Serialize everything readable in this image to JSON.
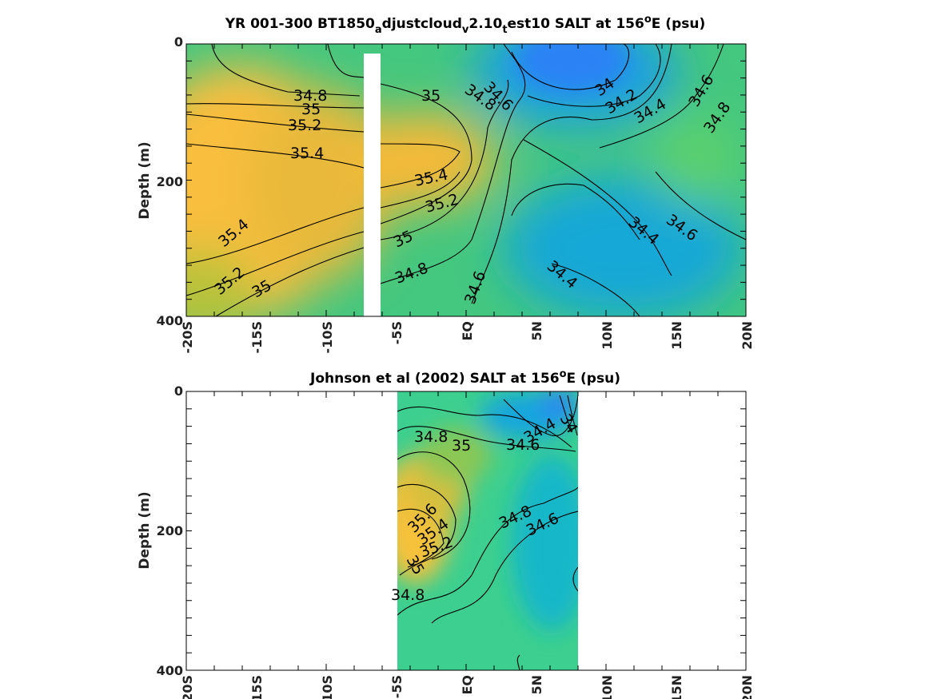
{
  "chart_data": [
    {
      "type": "heatmap",
      "title_parts": [
        "YR 001-300 BT1850",
        "a",
        "djustcloud",
        "v",
        "2.10",
        "t",
        "est10 SALT at 156",
        "o",
        "E (psu)"
      ],
      "ylabel": "Depth (m)",
      "xlim": [
        -20,
        20
      ],
      "ylim": [
        0,
        400
      ],
      "x_ticks": [
        "-20S",
        "-15S",
        "-10S",
        "-5S",
        "EQ",
        "5N",
        "10N",
        "15N",
        "20N"
      ],
      "y_ticks": [
        "0",
        "200",
        "400"
      ],
      "colors": {
        "high": "#f9be3d",
        "mid": "#3ccf8f",
        "low": "#2b82f5"
      },
      "masked_strip_lon": [
        -7.2,
        -6
      ],
      "contour_labels": [
        "34.8",
        "35",
        "35.2",
        "35.4",
        "35",
        "34.8",
        "35.4",
        "35.2",
        "34.6",
        "34",
        "34.2",
        "34.4",
        "34.6",
        "34.8",
        "35.4",
        "35.2",
        "35",
        "35",
        "34.8",
        "34.6",
        "34.4",
        "34.4",
        "34.6"
      ]
    },
    {
      "type": "heatmap",
      "title_parts": [
        "Johnson et al (2002) SALT at 156",
        "o",
        "E (psu)"
      ],
      "ylabel": "Depth (m)",
      "xlim": [
        -20,
        20
      ],
      "ylim": [
        0,
        400
      ],
      "x_ticks": [
        "20S",
        "15S",
        "10S",
        "-5S",
        "EQ",
        "5N",
        "10N",
        "15N",
        "20N"
      ],
      "y_ticks": [
        "0",
        "200",
        "400"
      ],
      "data_lon_range": [
        -5,
        8
      ],
      "contour_labels": [
        "34.8",
        "35",
        "34.6",
        "34.4",
        "34",
        "35.6",
        "35.4",
        "35.2",
        "35",
        "34.8",
        "34.6",
        "34.8"
      ]
    }
  ]
}
